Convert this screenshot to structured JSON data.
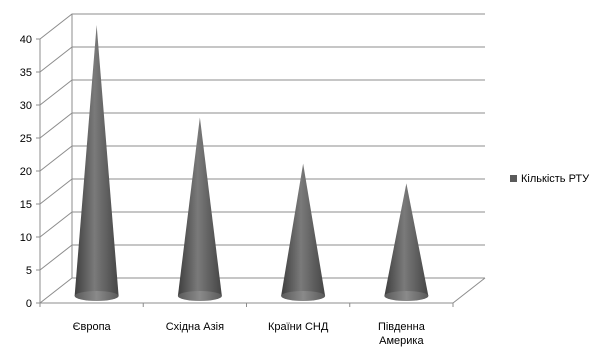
{
  "chart_data": {
    "type": "bar",
    "bar_shape": "cone-3d",
    "categories": [
      "Європа",
      "Східна Азія",
      "Країни СНД",
      "Південна Америка"
    ],
    "series": [
      {
        "name": "Кількість РТУ",
        "values": [
          40,
          26,
          19,
          16
        ]
      }
    ],
    "title": "",
    "xlabel": "",
    "ylabel": "",
    "ylim": [
      0,
      40
    ],
    "yticks": [
      0,
      5,
      10,
      15,
      20,
      25,
      30,
      35,
      40
    ],
    "grid": true,
    "legend_position": "right",
    "colors": {
      "cone": "#5a5a5a",
      "grid": "#8c8c8c"
    }
  }
}
